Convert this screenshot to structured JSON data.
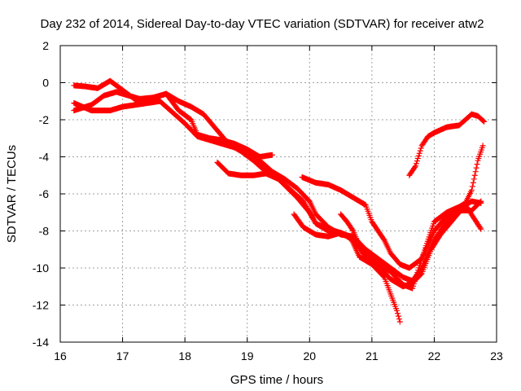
{
  "chart_data": {
    "type": "scatter",
    "title": "Day 232 of 2014, Sidereal Day-to-day VTEC variation (SDTVAR) for receiver atw2",
    "xlabel": "GPS time / hours",
    "ylabel": "SDTVAR / TECUs",
    "xlim": [
      16,
      23
    ],
    "ylim": [
      -14,
      2
    ],
    "xticks": [
      16,
      17,
      18,
      19,
      20,
      21,
      22,
      23
    ],
    "yticks": [
      -14,
      -12,
      -10,
      -8,
      -6,
      -4,
      -2,
      0,
      2
    ],
    "grid": true,
    "marker": "+",
    "color": "#ff0000",
    "series": [
      {
        "name": "track-1",
        "points": [
          [
            16.22,
            -0.15
          ],
          [
            16.4,
            -0.2
          ],
          [
            16.6,
            -0.3
          ],
          [
            16.8,
            0.1
          ],
          [
            17.0,
            -0.4
          ],
          [
            17.2,
            -0.9
          ],
          [
            17.5,
            -0.8
          ],
          [
            17.7,
            -0.6
          ],
          [
            17.9,
            -1.5
          ],
          [
            18.1,
            -2.0
          ],
          [
            18.2,
            -2.8
          ],
          [
            18.4,
            -3.0
          ],
          [
            18.6,
            -3.1
          ],
          [
            18.8,
            -3.3
          ],
          [
            19.0,
            -3.6
          ],
          [
            19.2,
            -4.0
          ],
          [
            19.4,
            -3.9
          ]
        ]
      },
      {
        "name": "track-2",
        "points": [
          [
            16.22,
            -1.5
          ],
          [
            16.5,
            -1.2
          ],
          [
            16.7,
            -0.7
          ],
          [
            16.9,
            -0.5
          ],
          [
            17.1,
            -0.7
          ],
          [
            17.3,
            -0.9
          ],
          [
            17.5,
            -0.8
          ],
          [
            17.7,
            -0.6
          ],
          [
            17.9,
            -1.0
          ],
          [
            18.1,
            -1.3
          ],
          [
            18.3,
            -1.7
          ],
          [
            18.5,
            -2.5
          ],
          [
            18.7,
            -3.3
          ],
          [
            18.9,
            -3.7
          ],
          [
            19.1,
            -4.2
          ],
          [
            19.3,
            -4.8
          ],
          [
            19.5,
            -5.2
          ],
          [
            19.8,
            -6.2
          ],
          [
            20.0,
            -7.0
          ],
          [
            20.1,
            -7.6
          ],
          [
            20.3,
            -7.9
          ],
          [
            20.5,
            -8.1
          ],
          [
            20.7,
            -8.5
          ],
          [
            20.9,
            -9.3
          ],
          [
            21.1,
            -9.8
          ],
          [
            21.3,
            -10.2
          ],
          [
            21.5,
            -10.9
          ],
          [
            21.65,
            -11.1
          ],
          [
            21.8,
            -9.5
          ],
          [
            22.0,
            -8.0
          ],
          [
            22.2,
            -7.2
          ],
          [
            22.4,
            -6.9
          ],
          [
            22.6,
            -6.9
          ],
          [
            22.75,
            -6.4
          ]
        ]
      },
      {
        "name": "track-3",
        "points": [
          [
            16.22,
            -1.1
          ],
          [
            16.5,
            -1.5
          ],
          [
            16.8,
            -1.5
          ],
          [
            17.0,
            -1.3
          ],
          [
            17.2,
            -1.2
          ],
          [
            17.4,
            -1.1
          ],
          [
            17.6,
            -1.0
          ],
          [
            17.8,
            -1.6
          ],
          [
            18.0,
            -2.2
          ],
          [
            18.2,
            -2.9
          ],
          [
            18.5,
            -3.2
          ],
          [
            18.8,
            -3.5
          ],
          [
            19.0,
            -3.8
          ],
          [
            19.2,
            -4.2
          ],
          [
            19.4,
            -4.8
          ],
          [
            19.6,
            -5.2
          ],
          [
            19.8,
            -5.7
          ],
          [
            20.0,
            -6.4
          ],
          [
            20.1,
            -7.1
          ],
          [
            20.3,
            -7.8
          ],
          [
            20.5,
            -8.2
          ],
          [
            20.7,
            -8.3
          ],
          [
            20.9,
            -9.0
          ],
          [
            21.1,
            -9.5
          ],
          [
            21.3,
            -10.0
          ],
          [
            21.5,
            -10.5
          ],
          [
            21.65,
            -10.7
          ],
          [
            21.8,
            -10.0
          ],
          [
            22.0,
            -8.5
          ],
          [
            22.2,
            -7.5
          ],
          [
            22.4,
            -6.8
          ],
          [
            22.6,
            -6.4
          ],
          [
            22.75,
            -6.5
          ]
        ]
      },
      {
        "name": "track-4",
        "points": [
          [
            18.52,
            -4.3
          ],
          [
            18.7,
            -4.9
          ],
          [
            18.9,
            -5.0
          ],
          [
            19.1,
            -5.0
          ],
          [
            19.3,
            -4.9
          ],
          [
            19.5,
            -5.2
          ],
          [
            19.7,
            -5.8
          ],
          [
            19.9,
            -6.4
          ],
          [
            20.1,
            -7.6
          ],
          [
            20.3,
            -8.0
          ],
          [
            20.5,
            -8.1
          ],
          [
            20.7,
            -8.4
          ],
          [
            20.9,
            -9.4
          ],
          [
            21.1,
            -9.9
          ],
          [
            21.3,
            -10.6
          ],
          [
            21.5,
            -11.0
          ],
          [
            21.65,
            -10.8
          ],
          [
            21.8,
            -10.3
          ],
          [
            21.95,
            -9.0
          ],
          [
            22.1,
            -8.2
          ],
          [
            22.3,
            -7.4
          ],
          [
            22.5,
            -6.6
          ],
          [
            22.75,
            -7.9
          ]
        ]
      },
      {
        "name": "track-5",
        "points": [
          [
            19.88,
            -5.1
          ],
          [
            20.1,
            -5.4
          ],
          [
            20.3,
            -5.5
          ],
          [
            20.5,
            -5.8
          ],
          [
            20.7,
            -6.2
          ],
          [
            20.9,
            -6.6
          ],
          [
            21.0,
            -7.5
          ],
          [
            21.2,
            -8.5
          ],
          [
            21.3,
            -9.2
          ],
          [
            21.45,
            -9.8
          ],
          [
            21.6,
            -10.0
          ],
          [
            21.8,
            -9.5
          ],
          [
            22.0,
            -7.5
          ],
          [
            22.2,
            -7.0
          ],
          [
            22.4,
            -6.7
          ],
          [
            22.5,
            -6.5
          ],
          [
            22.6,
            -5.8
          ],
          [
            22.7,
            -4.2
          ],
          [
            22.78,
            -3.4
          ]
        ]
      },
      {
        "name": "track-6",
        "points": [
          [
            19.75,
            -7.1
          ],
          [
            19.9,
            -7.8
          ],
          [
            20.1,
            -8.2
          ],
          [
            20.3,
            -8.3
          ],
          [
            20.5,
            -8.1
          ],
          [
            20.65,
            -8.3
          ],
          [
            20.8,
            -9.4
          ],
          [
            21.0,
            -9.8
          ],
          [
            21.2,
            -10.5
          ],
          [
            21.3,
            -11.4
          ],
          [
            21.4,
            -12.3
          ],
          [
            21.45,
            -12.9
          ]
        ]
      },
      {
        "name": "track-7",
        "points": [
          [
            20.5,
            -7.1
          ],
          [
            20.6,
            -7.5
          ],
          [
            20.7,
            -8.0
          ],
          [
            20.8,
            -8.8
          ],
          [
            20.9,
            -9.4
          ]
        ]
      },
      {
        "name": "track-8",
        "points": [
          [
            21.6,
            -5.0
          ],
          [
            21.7,
            -4.5
          ],
          [
            21.8,
            -3.4
          ],
          [
            21.9,
            -2.9
          ],
          [
            22.0,
            -2.7
          ],
          [
            22.2,
            -2.4
          ],
          [
            22.4,
            -2.3
          ],
          [
            22.5,
            -2.0
          ],
          [
            22.6,
            -1.7
          ],
          [
            22.7,
            -1.8
          ],
          [
            22.8,
            -2.1
          ]
        ]
      }
    ]
  }
}
